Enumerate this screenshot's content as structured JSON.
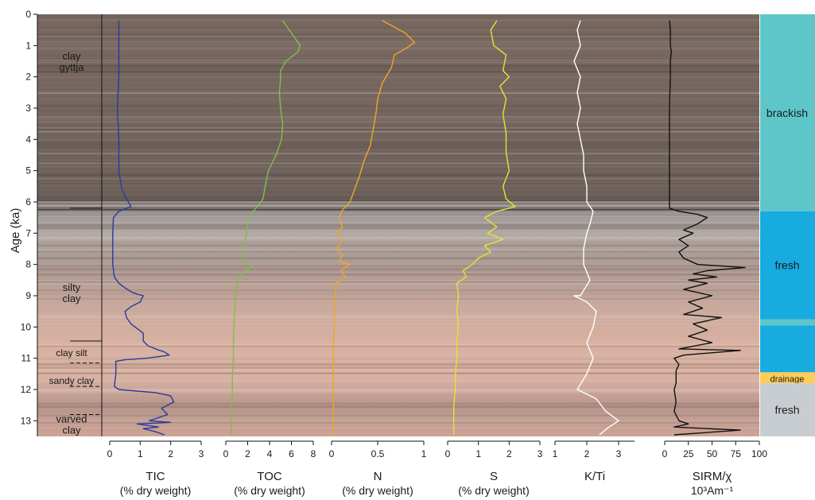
{
  "chart_data": {
    "type": "line",
    "title": "",
    "ylabel": "Age (ka)",
    "ylim": [
      0,
      13.5
    ],
    "yticks": [
      0,
      1,
      2,
      3,
      4,
      5,
      6,
      7,
      8,
      9,
      10,
      11,
      12,
      13
    ],
    "panels": [
      {
        "name": "TIC",
        "unit": "(% dry weight)",
        "xlim": [
          0,
          3
        ],
        "ticks": [
          0,
          1,
          2,
          3
        ],
        "color": "#2b3a9e",
        "points": [
          [
            0.3,
            0.2
          ],
          [
            0.3,
            1
          ],
          [
            0.3,
            2
          ],
          [
            0.25,
            3
          ],
          [
            0.3,
            4
          ],
          [
            0.3,
            5
          ],
          [
            0.4,
            5.6
          ],
          [
            0.55,
            5.9
          ],
          [
            0.7,
            6.15
          ],
          [
            0.3,
            6.3
          ],
          [
            0.12,
            6.5
          ],
          [
            0.1,
            7
          ],
          [
            0.1,
            8
          ],
          [
            0.15,
            8.4
          ],
          [
            0.3,
            8.6
          ],
          [
            0.5,
            8.75
          ],
          [
            0.75,
            8.9
          ],
          [
            0.9,
            8.95
          ],
          [
            1.1,
            9.0
          ],
          [
            1.0,
            9.2
          ],
          [
            0.7,
            9.35
          ],
          [
            0.5,
            9.5
          ],
          [
            0.55,
            9.7
          ],
          [
            0.7,
            9.9
          ],
          [
            0.9,
            10.05
          ],
          [
            1.1,
            10.2
          ],
          [
            1.1,
            10.45
          ],
          [
            1.25,
            10.6
          ],
          [
            1.5,
            10.7
          ],
          [
            1.8,
            10.8
          ],
          [
            1.95,
            10.9
          ],
          [
            1.6,
            10.95
          ],
          [
            1.2,
            11.0
          ],
          [
            0.5,
            11.05
          ],
          [
            0.2,
            11.1
          ],
          [
            0.2,
            11.5
          ],
          [
            0.15,
            11.9
          ],
          [
            0.3,
            12.0
          ],
          [
            0.9,
            12.05
          ],
          [
            1.5,
            12.1
          ],
          [
            2.0,
            12.2
          ],
          [
            2.1,
            12.4
          ],
          [
            1.7,
            12.6
          ],
          [
            1.9,
            12.8
          ],
          [
            1.3,
            13.0
          ],
          [
            2.0,
            13.05
          ],
          [
            0.9,
            13.1
          ],
          [
            1.6,
            13.2
          ],
          [
            1.1,
            13.25
          ],
          [
            1.5,
            13.35
          ],
          [
            1.8,
            13.45
          ]
        ]
      },
      {
        "name": "TOC",
        "unit": "(% dry weight)",
        "xlim": [
          0,
          8
        ],
        "ticks": [
          0,
          2,
          4,
          6,
          8
        ],
        "color": "#7ec04a",
        "points": [
          [
            5.2,
            0.2
          ],
          [
            6.2,
            0.7
          ],
          [
            6.8,
            1.0
          ],
          [
            6.6,
            1.2
          ],
          [
            5.5,
            1.5
          ],
          [
            5.0,
            1.8
          ],
          [
            5.0,
            2.1
          ],
          [
            4.9,
            2.5
          ],
          [
            5.0,
            3.0
          ],
          [
            5.2,
            3.5
          ],
          [
            5.1,
            4.0
          ],
          [
            4.6,
            4.5
          ],
          [
            3.9,
            5.0
          ],
          [
            3.6,
            5.5
          ],
          [
            3.4,
            5.9
          ],
          [
            3.0,
            6.1
          ],
          [
            2.5,
            6.3
          ],
          [
            2.1,
            6.5
          ],
          [
            1.9,
            7.0
          ],
          [
            1.6,
            7.5
          ],
          [
            1.5,
            7.9
          ],
          [
            1.9,
            8.0
          ],
          [
            2.5,
            8.05
          ],
          [
            1.8,
            8.2
          ],
          [
            1.2,
            8.4
          ],
          [
            1.0,
            8.7
          ],
          [
            0.9,
            9.0
          ],
          [
            0.8,
            9.5
          ],
          [
            0.75,
            10.0
          ],
          [
            0.7,
            10.5
          ],
          [
            0.7,
            11.0
          ],
          [
            0.6,
            11.5
          ],
          [
            0.6,
            12.0
          ],
          [
            0.55,
            12.5
          ],
          [
            0.5,
            13.0
          ],
          [
            0.55,
            13.45
          ]
        ]
      },
      {
        "name": "N",
        "unit": "(% dry weight)",
        "xlim": [
          0,
          1
        ],
        "ticks": [
          0,
          0.5,
          1
        ],
        "tick_labels": [
          "0",
          "0.5",
          "1"
        ],
        "color": "#f2a623",
        "points": [
          [
            0.55,
            0.2
          ],
          [
            0.8,
            0.6
          ],
          [
            0.9,
            0.9
          ],
          [
            0.8,
            1.1
          ],
          [
            0.68,
            1.3
          ],
          [
            0.65,
            1.7
          ],
          [
            0.55,
            2.2
          ],
          [
            0.5,
            2.7
          ],
          [
            0.48,
            3.2
          ],
          [
            0.45,
            3.7
          ],
          [
            0.42,
            4.2
          ],
          [
            0.35,
            4.7
          ],
          [
            0.3,
            5.2
          ],
          [
            0.25,
            5.6
          ],
          [
            0.2,
            6.0
          ],
          [
            0.12,
            6.25
          ],
          [
            0.08,
            6.5
          ],
          [
            0.12,
            6.8
          ],
          [
            0.05,
            7.0
          ],
          [
            0.12,
            7.2
          ],
          [
            0.05,
            7.5
          ],
          [
            0.12,
            7.7
          ],
          [
            0.08,
            7.9
          ],
          [
            0.2,
            8.0
          ],
          [
            0.1,
            8.2
          ],
          [
            0.15,
            8.4
          ],
          [
            0.05,
            8.6
          ],
          [
            0.04,
            9.0
          ],
          [
            0.03,
            9.5
          ],
          [
            0.03,
            10.0
          ],
          [
            0.02,
            10.5
          ],
          [
            0.02,
            11.0
          ],
          [
            0.02,
            11.5
          ],
          [
            0.02,
            12.0
          ],
          [
            0.02,
            12.5
          ],
          [
            0.02,
            13.0
          ],
          [
            0.02,
            13.45
          ]
        ]
      },
      {
        "name": "S",
        "unit": "(% dry weight)",
        "xlim": [
          0,
          3
        ],
        "ticks": [
          0,
          1,
          2,
          3
        ],
        "color": "#e8e232",
        "points": [
          [
            1.6,
            0.2
          ],
          [
            1.4,
            0.5
          ],
          [
            1.5,
            1.0
          ],
          [
            1.9,
            1.3
          ],
          [
            1.8,
            1.8
          ],
          [
            2.0,
            2.0
          ],
          [
            1.7,
            2.3
          ],
          [
            1.9,
            2.7
          ],
          [
            1.8,
            3.2
          ],
          [
            1.9,
            3.8
          ],
          [
            1.9,
            4.4
          ],
          [
            2.0,
            5.0
          ],
          [
            1.8,
            5.5
          ],
          [
            1.9,
            5.9
          ],
          [
            2.2,
            6.15
          ],
          [
            1.6,
            6.3
          ],
          [
            1.2,
            6.5
          ],
          [
            1.6,
            6.8
          ],
          [
            1.3,
            7.0
          ],
          [
            1.8,
            7.2
          ],
          [
            1.2,
            7.4
          ],
          [
            1.4,
            7.6
          ],
          [
            1.0,
            7.8
          ],
          [
            0.8,
            8.0
          ],
          [
            0.5,
            8.2
          ],
          [
            0.6,
            8.4
          ],
          [
            0.3,
            8.6
          ],
          [
            0.35,
            9.0
          ],
          [
            0.3,
            9.5
          ],
          [
            0.35,
            10.0
          ],
          [
            0.3,
            10.5
          ],
          [
            0.3,
            11.0
          ],
          [
            0.25,
            11.5
          ],
          [
            0.25,
            12.0
          ],
          [
            0.2,
            12.5
          ],
          [
            0.2,
            13.0
          ],
          [
            0.2,
            13.45
          ]
        ]
      },
      {
        "name": "K/Ti",
        "unit": "",
        "xlim": [
          1,
          3.5
        ],
        "ticks": [
          1,
          2,
          3
        ],
        "color": "#ffffff",
        "points": [
          [
            1.8,
            0.2
          ],
          [
            1.7,
            0.5
          ],
          [
            1.8,
            1.0
          ],
          [
            1.6,
            1.5
          ],
          [
            1.8,
            2.0
          ],
          [
            1.7,
            2.5
          ],
          [
            1.8,
            3.0
          ],
          [
            1.7,
            3.5
          ],
          [
            1.8,
            4.0
          ],
          [
            1.9,
            4.5
          ],
          [
            1.9,
            5.0
          ],
          [
            2.0,
            5.5
          ],
          [
            2.0,
            6.0
          ],
          [
            2.2,
            6.3
          ],
          [
            2.1,
            6.7
          ],
          [
            2.0,
            7.0
          ],
          [
            1.9,
            7.5
          ],
          [
            1.9,
            8.0
          ],
          [
            2.1,
            8.5
          ],
          [
            1.8,
            9.0
          ],
          [
            1.6,
            9.0
          ],
          [
            2.0,
            9.2
          ],
          [
            2.3,
            9.5
          ],
          [
            2.2,
            10.0
          ],
          [
            2.0,
            10.5
          ],
          [
            2.2,
            11.0
          ],
          [
            2.0,
            11.5
          ],
          [
            1.7,
            12.0
          ],
          [
            2.3,
            12.3
          ],
          [
            2.6,
            12.7
          ],
          [
            3.0,
            13.0
          ],
          [
            2.7,
            13.2
          ],
          [
            2.4,
            13.45
          ]
        ]
      },
      {
        "name": "SIRM/χ",
        "unit": "10³Am⁻¹",
        "xlim": [
          0,
          100
        ],
        "ticks": [
          0,
          25,
          50,
          75,
          100
        ],
        "color": "#111111",
        "points": [
          [
            5,
            0.2
          ],
          [
            6,
            0.5
          ],
          [
            6,
            1.0
          ],
          [
            7,
            1.2
          ],
          [
            6,
            1.5
          ],
          [
            6,
            2.0
          ],
          [
            5,
            3.0
          ],
          [
            5,
            4.0
          ],
          [
            5,
            5.0
          ],
          [
            5,
            6.0
          ],
          [
            5,
            6.2
          ],
          [
            15,
            6.3
          ],
          [
            35,
            6.4
          ],
          [
            45,
            6.5
          ],
          [
            35,
            6.7
          ],
          [
            20,
            6.9
          ],
          [
            30,
            7.0
          ],
          [
            15,
            7.2
          ],
          [
            25,
            7.4
          ],
          [
            15,
            7.6
          ],
          [
            20,
            7.8
          ],
          [
            35,
            8.0
          ],
          [
            60,
            8.05
          ],
          [
            85,
            8.1
          ],
          [
            45,
            8.2
          ],
          [
            30,
            8.3
          ],
          [
            55,
            8.4
          ],
          [
            25,
            8.5
          ],
          [
            45,
            8.6
          ],
          [
            20,
            8.8
          ],
          [
            50,
            9.0
          ],
          [
            25,
            9.2
          ],
          [
            40,
            9.4
          ],
          [
            20,
            9.6
          ],
          [
            60,
            9.7
          ],
          [
            30,
            9.9
          ],
          [
            45,
            10.1
          ],
          [
            25,
            10.3
          ],
          [
            50,
            10.5
          ],
          [
            15,
            10.7
          ],
          [
            80,
            10.75
          ],
          [
            20,
            10.9
          ],
          [
            10,
            11.0
          ],
          [
            15,
            11.2
          ],
          [
            12,
            11.4
          ],
          [
            12,
            11.8
          ],
          [
            10,
            12.0
          ],
          [
            12,
            12.4
          ],
          [
            10,
            12.7
          ],
          [
            15,
            13.0
          ],
          [
            25,
            13.1
          ],
          [
            10,
            13.2
          ],
          [
            80,
            13.3
          ],
          [
            10,
            13.45
          ]
        ]
      }
    ],
    "lithology": [
      {
        "label_lines": [
          "clay",
          "gyttja"
        ],
        "age": 1.5
      },
      {
        "label_lines": [
          "silty",
          "clay"
        ],
        "age": 8.9
      },
      {
        "label_lines": [
          "clay silt"
        ],
        "age": 10.8
      },
      {
        "label_lines": [
          "sandy clay"
        ],
        "age": 11.7
      },
      {
        "label_lines": [
          "varved",
          "clay"
        ],
        "age": 13.1
      }
    ],
    "lithology_boundaries": [
      6.2,
      10.45,
      11.15,
      11.9,
      12.8
    ],
    "environment": [
      {
        "label": "brackish",
        "from": 0,
        "to": 6.3,
        "color": "#5ec6c9"
      },
      {
        "label": "fresh",
        "from": 6.3,
        "to": 9.75,
        "color": "#17abe0"
      },
      {
        "label": "",
        "from": 9.75,
        "to": 9.95,
        "color": "#5ec6c9"
      },
      {
        "label": "",
        "from": 9.95,
        "to": 11.45,
        "color": "#17abe0"
      },
      {
        "label": "drainage",
        "from": 11.45,
        "to": 11.8,
        "color": "#ffcc55"
      },
      {
        "label": "fresh",
        "from": 11.8,
        "to": 13.5,
        "color": "#c8cdd2"
      }
    ]
  }
}
